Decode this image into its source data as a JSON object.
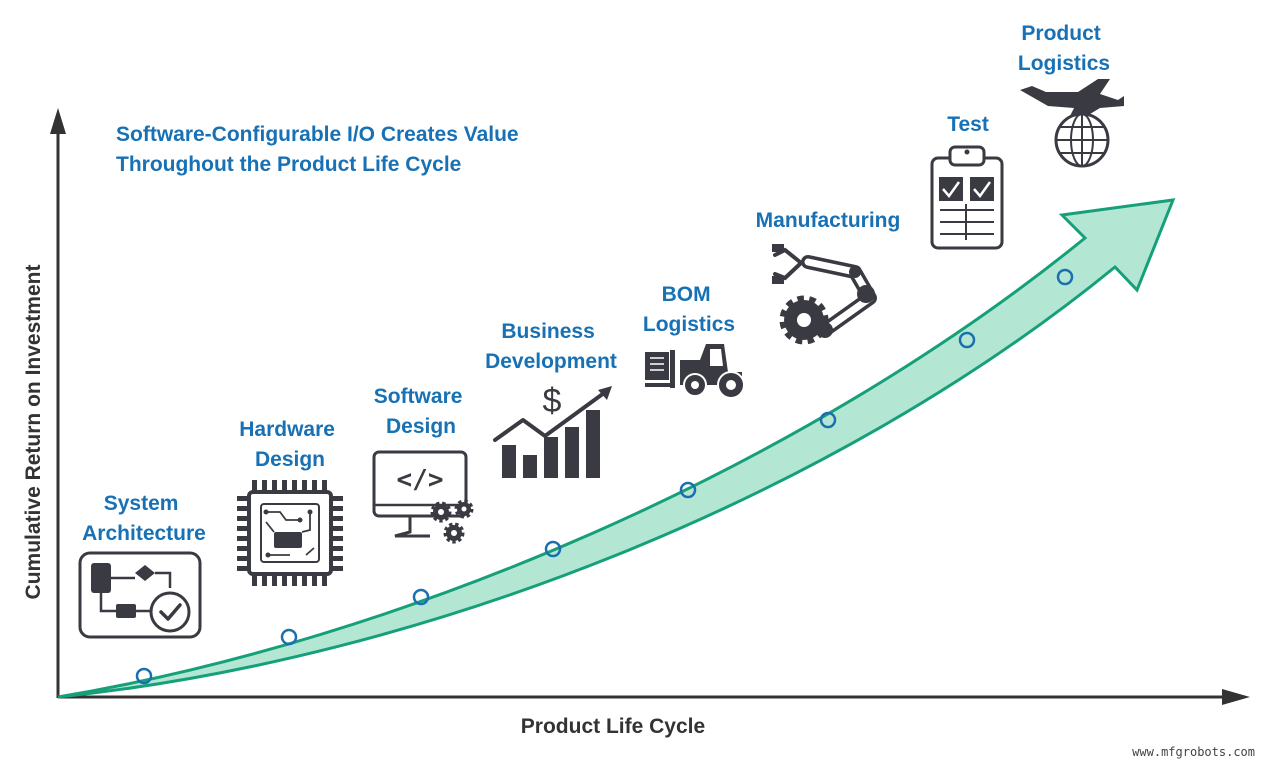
{
  "title": {
    "line1": "Software-Configurable I/O Creates Value",
    "line2": "Throughout the Product Life Cycle"
  },
  "axes": {
    "x_label": "Product Life Cycle",
    "y_label": "Cumulative Return on Investment"
  },
  "stages": [
    {
      "id": "system-architecture",
      "lines": [
        "System",
        "Architecture"
      ],
      "icon": "flowchart-check-icon"
    },
    {
      "id": "hardware-design",
      "lines": [
        "Hardware",
        "Design"
      ],
      "icon": "chip-icon"
    },
    {
      "id": "software-design",
      "lines": [
        "Software",
        "Design"
      ],
      "icon": "code-monitor-gears-icon"
    },
    {
      "id": "business-development",
      "lines": [
        "Business",
        "Development"
      ],
      "icon": "growth-bars-dollar-icon"
    },
    {
      "id": "bom-logistics",
      "lines": [
        "BOM",
        "Logistics"
      ],
      "icon": "forklift-icon"
    },
    {
      "id": "manufacturing",
      "lines": [
        "Manufacturing"
      ],
      "icon": "robot-arm-gear-icon"
    },
    {
      "id": "test",
      "lines": [
        "Test"
      ],
      "icon": "clipboard-checklist-icon"
    },
    {
      "id": "product-logistics",
      "lines": [
        "Product",
        "Logistics"
      ],
      "icon": "airplane-globe-icon"
    }
  ],
  "colors": {
    "label_blue": "#1771b4",
    "arrow_green": "#16a07a",
    "arrow_fill": "#b3e6d3",
    "marker_blue": "#1a6fb0",
    "icon_dark": "#3a3a42",
    "axis_dark": "#333333"
  },
  "watermark": "www.mfgrobots.com"
}
